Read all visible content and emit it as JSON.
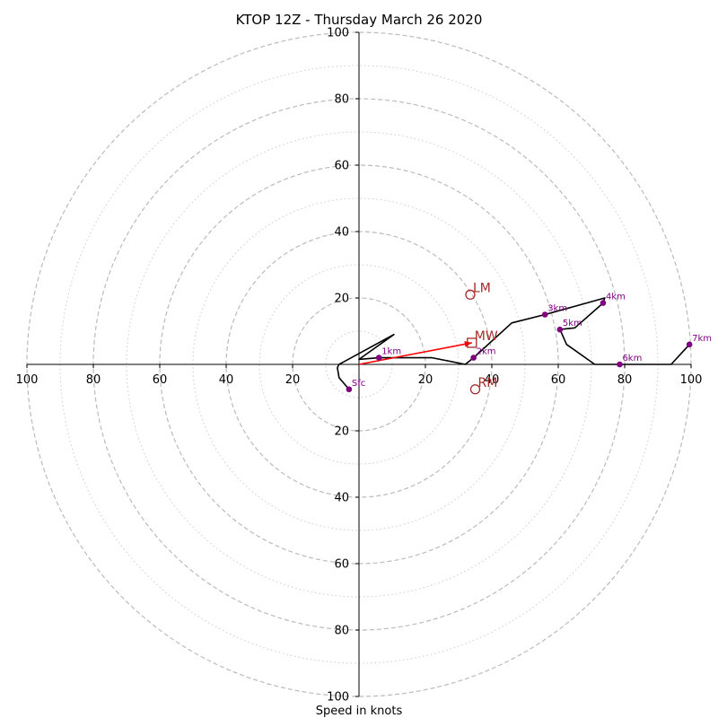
{
  "chart_data": {
    "type": "hodograph",
    "title": "KTOP 12Z - Thursday March 26 2020",
    "xlabel": "Speed in knots",
    "range": [
      0,
      100
    ],
    "major_rings": [
      20,
      40,
      60,
      80,
      100
    ],
    "minor_rings": [
      10,
      30,
      50,
      70,
      90
    ],
    "tick_labels": [
      "100",
      "80",
      "60",
      "40",
      "20",
      "20",
      "40",
      "60",
      "80",
      "100"
    ],
    "trace": [
      {
        "u": -3,
        "v": -7.5
      },
      {
        "u": -6,
        "v": -4
      },
      {
        "u": -6.5,
        "v": -1
      },
      {
        "u": -6,
        "v": 0
      },
      {
        "u": 10.5,
        "v": 9
      },
      {
        "u": 0,
        "v": 1.5
      },
      {
        "u": 6,
        "v": 2
      },
      {
        "u": 22,
        "v": 2
      },
      {
        "u": 32,
        "v": 0
      },
      {
        "u": 34.5,
        "v": 2
      },
      {
        "u": 46,
        "v": 12.5
      },
      {
        "u": 56,
        "v": 15
      },
      {
        "u": 74,
        "v": 20
      },
      {
        "u": 73.5,
        "v": 18.5
      },
      {
        "u": 65,
        "v": 11
      },
      {
        "u": 60.5,
        "v": 10.5
      },
      {
        "u": 62.5,
        "v": 6
      },
      {
        "u": 71,
        "v": 0
      },
      {
        "u": 78.5,
        "v": 0
      },
      {
        "u": 94,
        "v": 0
      },
      {
        "u": 99.5,
        "v": 6
      }
    ],
    "height_markers": [
      {
        "label": "Sfc",
        "u": -3,
        "v": -7.5
      },
      {
        "label": "1km",
        "u": 6,
        "v": 2
      },
      {
        "label": "2km",
        "u": 34.5,
        "v": 2
      },
      {
        "label": "3km",
        "u": 56,
        "v": 15
      },
      {
        "label": "4km",
        "u": 73.5,
        "v": 18.5
      },
      {
        "label": "5km",
        "u": 60.5,
        "v": 10.5
      },
      {
        "label": "6km",
        "u": 78.5,
        "v": 0
      },
      {
        "label": "7km",
        "u": 99.5,
        "v": 6
      }
    ],
    "storm_motion": [
      {
        "label": "LM",
        "u": 33.5,
        "v": 21,
        "marker": "circle"
      },
      {
        "label": "MW",
        "u": 34,
        "v": 6.5,
        "marker": "square"
      },
      {
        "label": "RM",
        "u": 35,
        "v": -7.5,
        "marker": "circle"
      }
    ],
    "mean_wind_vector": {
      "u": 34,
      "v": 6.5
    },
    "colors": {
      "trace": "#000000",
      "height_marker": "#800080",
      "storm_motion": "#a52a2a",
      "vector": "#ff0000",
      "grid": "#bbbbbb"
    }
  }
}
